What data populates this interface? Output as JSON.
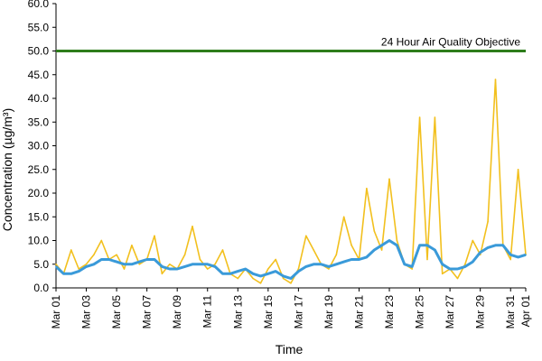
{
  "chart_data": {
    "type": "line",
    "title": "",
    "xlabel": "Time",
    "ylabel": "Concentration (µg/m³)",
    "ylim": [
      0,
      60
    ],
    "y_ticks": [
      "0.0",
      "5.0",
      "10.0",
      "15.0",
      "20.0",
      "25.0",
      "30.0",
      "35.0",
      "40.0",
      "45.0",
      "50.0",
      "55.0",
      "60.0"
    ],
    "x_range_days": [
      "Mar 01",
      "Apr 01"
    ],
    "x_ticks": [
      "Mar 01",
      "Mar 03",
      "Mar 05",
      "Mar 07",
      "Mar 09",
      "Mar 11",
      "Mar 13",
      "Mar 15",
      "Mar 17",
      "Mar 19",
      "Mar 21",
      "Mar 23",
      "Mar 25",
      "Mar 27",
      "Mar 29",
      "Mar 31",
      "Apr 01"
    ],
    "grid": false,
    "colors": {
      "hourly": "#f2c01e",
      "rolling": "#3a9ad9",
      "objective": "#2e7d1b"
    },
    "objective": {
      "value": 50,
      "label": "24 Hour Air Quality Objective"
    },
    "series": [
      {
        "key": "hourly",
        "x": [
          "Mar 01",
          "Mar 01 12:00",
          "Mar 02",
          "Mar 02 12:00",
          "Mar 03",
          "Mar 03 12:00",
          "Mar 04",
          "Mar 04 12:00",
          "Mar 05",
          "Mar 05 12:00",
          "Mar 06",
          "Mar 06 12:00",
          "Mar 07",
          "Mar 07 12:00",
          "Mar 08",
          "Mar 08 12:00",
          "Mar 09",
          "Mar 09 12:00",
          "Mar 10",
          "Mar 10 12:00",
          "Mar 11",
          "Mar 11 12:00",
          "Mar 12",
          "Mar 12 12:00",
          "Mar 13",
          "Mar 13 12:00",
          "Mar 14",
          "Mar 14 12:00",
          "Mar 15",
          "Mar 15 12:00",
          "Mar 16",
          "Mar 16 12:00",
          "Mar 17",
          "Mar 17 12:00",
          "Mar 18",
          "Mar 18 12:00",
          "Mar 19",
          "Mar 19 12:00",
          "Mar 20",
          "Mar 20 12:00",
          "Mar 21",
          "Mar 21 12:00",
          "Mar 22",
          "Mar 22 12:00",
          "Mar 23",
          "Mar 23 12:00",
          "Mar 24",
          "Mar 24 12:00",
          "Mar 25",
          "Mar 25 12:00",
          "Mar 26",
          "Mar 26 12:00",
          "Mar 27",
          "Mar 27 12:00",
          "Mar 28",
          "Mar 28 12:00",
          "Mar 29",
          "Mar 29 12:00",
          "Mar 30",
          "Mar 30 12:00",
          "Mar 31",
          "Mar 31 12:00",
          "Apr 01"
        ],
        "values": [
          5,
          3,
          8,
          4,
          5,
          7,
          10,
          6,
          7,
          4,
          9,
          5,
          6,
          11,
          3,
          5,
          4,
          7,
          13,
          6,
          4,
          5,
          8,
          3,
          2,
          4,
          2,
          1,
          4,
          6,
          2,
          1,
          4,
          11,
          8,
          5,
          4,
          7,
          15,
          9,
          6,
          21,
          12,
          8,
          23,
          10,
          5,
          4,
          36,
          6,
          36,
          3,
          4,
          2,
          5,
          10,
          7,
          14,
          44,
          9,
          6,
          25,
          7
        ]
      },
      {
        "key": "rolling",
        "x": [
          "Mar 01",
          "Mar 01 12:00",
          "Mar 02",
          "Mar 02 12:00",
          "Mar 03",
          "Mar 03 12:00",
          "Mar 04",
          "Mar 04 12:00",
          "Mar 05",
          "Mar 05 12:00",
          "Mar 06",
          "Mar 06 12:00",
          "Mar 07",
          "Mar 07 12:00",
          "Mar 08",
          "Mar 08 12:00",
          "Mar 09",
          "Mar 09 12:00",
          "Mar 10",
          "Mar 10 12:00",
          "Mar 11",
          "Mar 11 12:00",
          "Mar 12",
          "Mar 12 12:00",
          "Mar 13",
          "Mar 13 12:00",
          "Mar 14",
          "Mar 14 12:00",
          "Mar 15",
          "Mar 15 12:00",
          "Mar 16",
          "Mar 16 12:00",
          "Mar 17",
          "Mar 17 12:00",
          "Mar 18",
          "Mar 18 12:00",
          "Mar 19",
          "Mar 19 12:00",
          "Mar 20",
          "Mar 20 12:00",
          "Mar 21",
          "Mar 21 12:00",
          "Mar 22",
          "Mar 22 12:00",
          "Mar 23",
          "Mar 23 12:00",
          "Mar 24",
          "Mar 24 12:00",
          "Mar 25",
          "Mar 25 12:00",
          "Mar 26",
          "Mar 26 12:00",
          "Mar 27",
          "Mar 27 12:00",
          "Mar 28",
          "Mar 28 12:00",
          "Mar 29",
          "Mar 29 12:00",
          "Mar 30",
          "Mar 30 12:00",
          "Mar 31",
          "Mar 31 12:00",
          "Apr 01"
        ],
        "values": [
          4.5,
          3,
          3,
          3.5,
          4.5,
          5,
          6,
          6,
          5.5,
          5,
          5,
          5.5,
          6,
          6,
          4.5,
          4,
          4,
          4.5,
          5,
          5,
          5,
          4.5,
          3,
          3,
          3.5,
          4,
          3,
          2.5,
          3,
          3.5,
          2.5,
          2,
          3.5,
          4.5,
          5,
          5,
          4.5,
          5,
          5.5,
          6,
          6,
          6.5,
          8,
          9,
          10,
          9,
          5,
          4.5,
          9,
          9,
          8,
          5,
          4,
          4,
          4.5,
          5.5,
          7.5,
          8.5,
          9,
          9,
          7,
          6.5,
          7
        ]
      }
    ]
  }
}
